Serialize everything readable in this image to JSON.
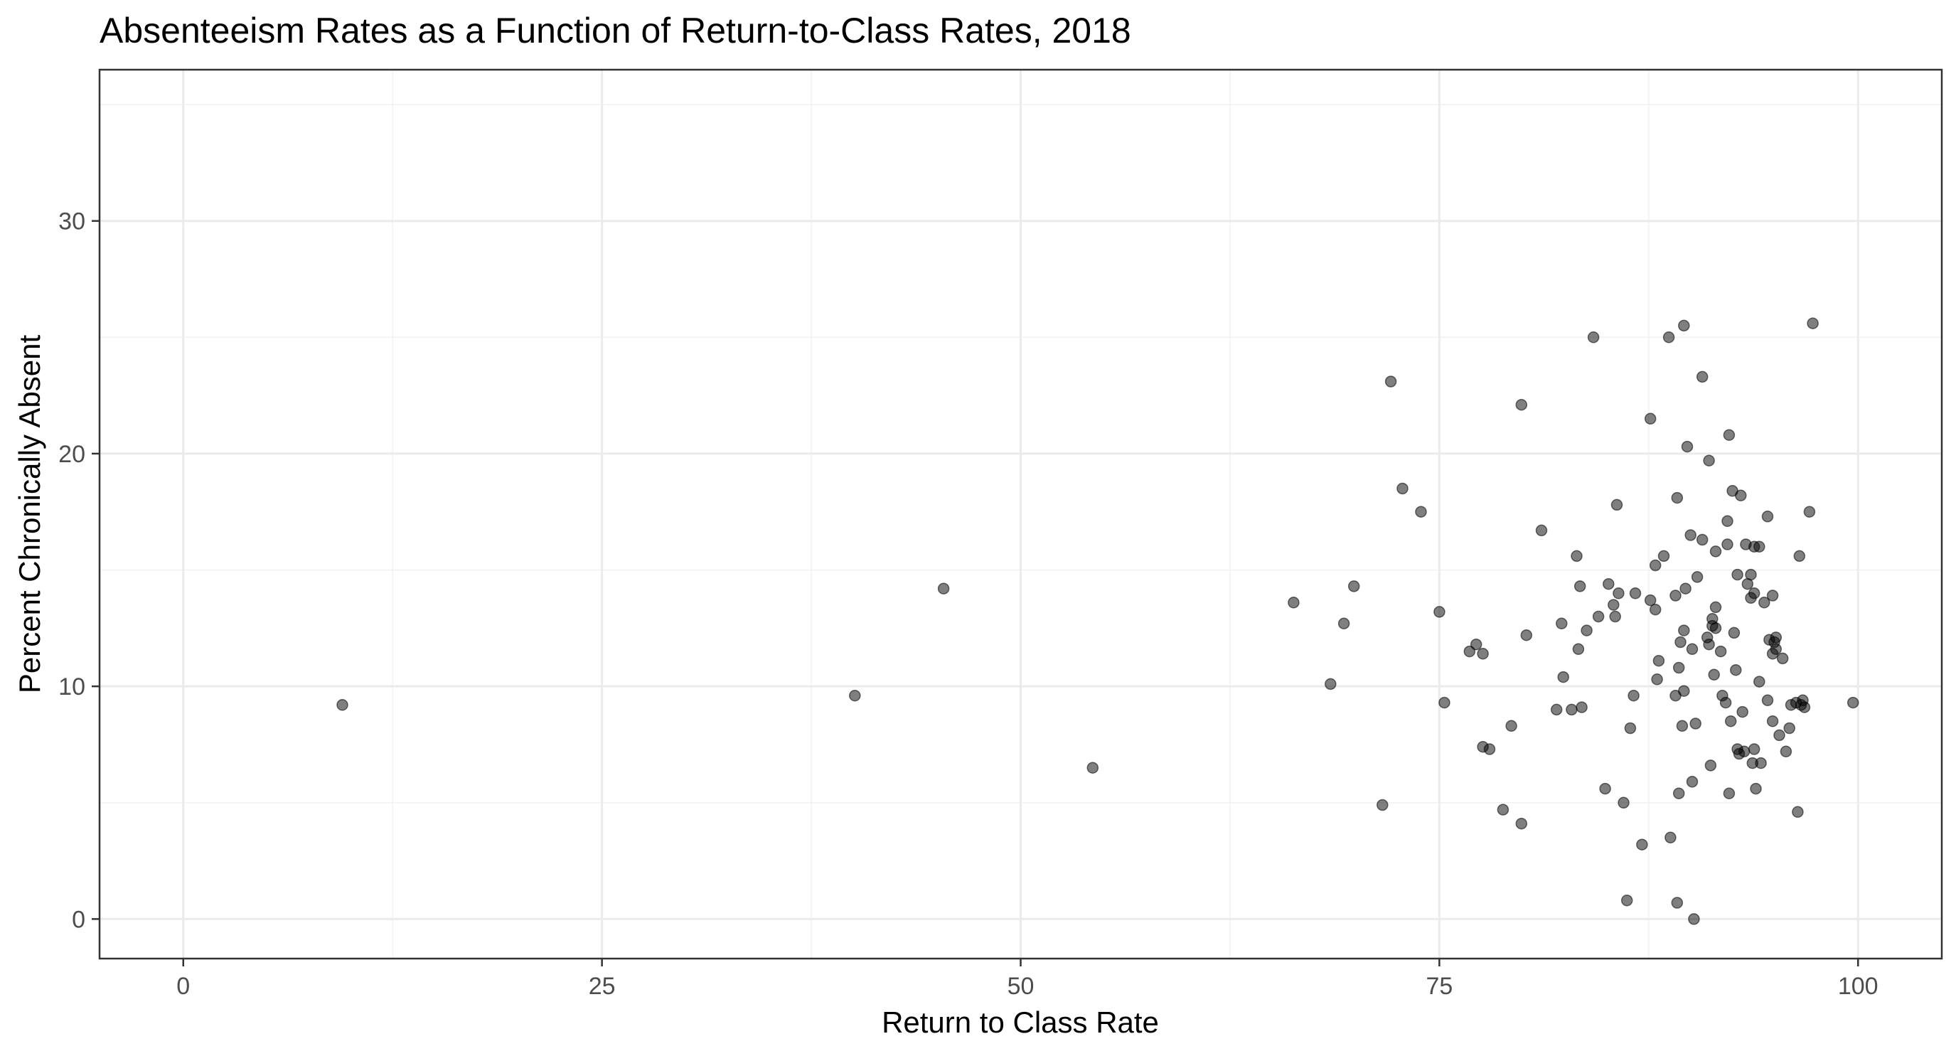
{
  "chart_data": {
    "type": "scatter",
    "title": "Absenteeism Rates as a Function of Return-to-Class Rates, 2018",
    "xlabel": "Return to Class Rate",
    "ylabel": "Percent Chronically Absent",
    "xlim": [
      -5,
      105
    ],
    "ylim": [
      -1.7,
      36.5
    ],
    "x_ticks": [
      0,
      25,
      50,
      75,
      100
    ],
    "y_ticks": [
      0,
      10,
      20,
      30
    ],
    "x_tick_labels": [
      "0",
      "25",
      "50",
      "75",
      "100"
    ],
    "y_tick_labels": [
      "0",
      "10",
      "20",
      "30"
    ],
    "grid": true,
    "legend": "none",
    "point_color": "#000000",
    "points": [
      [
        9.5,
        9.2
      ],
      [
        40.1,
        9.6
      ],
      [
        45.4,
        14.2
      ],
      [
        54.3,
        6.5
      ],
      [
        66.3,
        13.6
      ],
      [
        68.5,
        10.1
      ],
      [
        69.3,
        12.7
      ],
      [
        69.9,
        14.3
      ],
      [
        71.6,
        4.9
      ],
      [
        72.1,
        23.1
      ],
      [
        72.8,
        18.5
      ],
      [
        73.9,
        17.5
      ],
      [
        75.0,
        13.2
      ],
      [
        75.3,
        9.3
      ],
      [
        76.8,
        11.5
      ],
      [
        77.2,
        11.8
      ],
      [
        77.6,
        11.4
      ],
      [
        77.6,
        7.4
      ],
      [
        78.0,
        7.3
      ],
      [
        78.8,
        4.7
      ],
      [
        79.3,
        8.3
      ],
      [
        79.9,
        22.1
      ],
      [
        79.9,
        4.1
      ],
      [
        80.2,
        12.2
      ],
      [
        81.1,
        16.7
      ],
      [
        82.0,
        9.0
      ],
      [
        82.3,
        12.7
      ],
      [
        82.4,
        10.4
      ],
      [
        82.9,
        9.0
      ],
      [
        83.3,
        11.6
      ],
      [
        83.2,
        15.6
      ],
      [
        83.4,
        14.3
      ],
      [
        83.5,
        9.1
      ],
      [
        83.8,
        12.4
      ],
      [
        84.2,
        25.0
      ],
      [
        84.5,
        13.0
      ],
      [
        84.9,
        5.6
      ],
      [
        85.1,
        14.4
      ],
      [
        85.4,
        13.5
      ],
      [
        85.5,
        13.0
      ],
      [
        85.6,
        17.8
      ],
      [
        85.7,
        14.0
      ],
      [
        86.0,
        5.0
      ],
      [
        86.2,
        0.8
      ],
      [
        86.4,
        8.2
      ],
      [
        86.6,
        9.6
      ],
      [
        86.7,
        14.0
      ],
      [
        87.1,
        3.2
      ],
      [
        87.6,
        13.7
      ],
      [
        87.6,
        21.5
      ],
      [
        87.9,
        15.2
      ],
      [
        87.9,
        13.3
      ],
      [
        88.0,
        10.3
      ],
      [
        88.1,
        11.1
      ],
      [
        88.4,
        15.6
      ],
      [
        88.7,
        25.0
      ],
      [
        88.8,
        3.5
      ],
      [
        89.1,
        9.6
      ],
      [
        89.1,
        13.9
      ],
      [
        89.2,
        18.1
      ],
      [
        89.2,
        0.7
      ],
      [
        89.3,
        5.4
      ],
      [
        89.3,
        10.8
      ],
      [
        89.4,
        11.9
      ],
      [
        89.5,
        8.3
      ],
      [
        89.6,
        25.5
      ],
      [
        89.6,
        12.4
      ],
      [
        89.6,
        9.8
      ],
      [
        89.7,
        14.2
      ],
      [
        89.8,
        20.3
      ],
      [
        90.0,
        16.5
      ],
      [
        90.1,
        11.6
      ],
      [
        90.1,
        5.9
      ],
      [
        90.2,
        0.0
      ],
      [
        90.3,
        8.4
      ],
      [
        90.4,
        14.7
      ],
      [
        90.7,
        16.3
      ],
      [
        90.7,
        23.3
      ],
      [
        91.0,
        12.1
      ],
      [
        91.1,
        11.8
      ],
      [
        91.1,
        19.7
      ],
      [
        91.2,
        6.6
      ],
      [
        91.3,
        12.9
      ],
      [
        91.3,
        12.6
      ],
      [
        91.4,
        10.5
      ],
      [
        91.5,
        15.8
      ],
      [
        91.5,
        13.4
      ],
      [
        91.5,
        12.5
      ],
      [
        91.8,
        11.5
      ],
      [
        91.9,
        9.6
      ],
      [
        92.1,
        9.3
      ],
      [
        92.2,
        16.1
      ],
      [
        92.2,
        17.1
      ],
      [
        92.3,
        20.8
      ],
      [
        92.3,
        5.4
      ],
      [
        92.4,
        8.5
      ],
      [
        92.5,
        18.4
      ],
      [
        92.6,
        12.3
      ],
      [
        92.7,
        10.7
      ],
      [
        92.8,
        14.8
      ],
      [
        92.8,
        7.3
      ],
      [
        92.9,
        7.1
      ],
      [
        93.0,
        18.2
      ],
      [
        93.1,
        8.9
      ],
      [
        93.2,
        7.2
      ],
      [
        93.3,
        16.1
      ],
      [
        93.4,
        14.4
      ],
      [
        93.6,
        13.8
      ],
      [
        93.6,
        14.8
      ],
      [
        93.7,
        6.7
      ],
      [
        93.8,
        7.3
      ],
      [
        93.8,
        14.0
      ],
      [
        93.8,
        16.0
      ],
      [
        93.9,
        5.6
      ],
      [
        94.1,
        16.0
      ],
      [
        94.1,
        10.2
      ],
      [
        94.2,
        6.7
      ],
      [
        94.4,
        13.6
      ],
      [
        94.6,
        9.4
      ],
      [
        94.6,
        17.3
      ],
      [
        94.7,
        12.0
      ],
      [
        94.9,
        8.5
      ],
      [
        94.9,
        13.9
      ],
      [
        94.9,
        11.4
      ],
      [
        95.0,
        11.9
      ],
      [
        95.1,
        12.1
      ],
      [
        95.1,
        11.6
      ],
      [
        95.3,
        7.9
      ],
      [
        95.5,
        11.2
      ],
      [
        95.7,
        7.2
      ],
      [
        95.9,
        8.2
      ],
      [
        96.0,
        9.2
      ],
      [
        96.3,
        9.3
      ],
      [
        96.4,
        4.6
      ],
      [
        96.5,
        15.6
      ],
      [
        96.6,
        9.2
      ],
      [
        96.7,
        9.4
      ],
      [
        96.8,
        9.1
      ],
      [
        97.1,
        17.5
      ],
      [
        97.3,
        25.6
      ],
      [
        99.7,
        9.3
      ]
    ]
  }
}
